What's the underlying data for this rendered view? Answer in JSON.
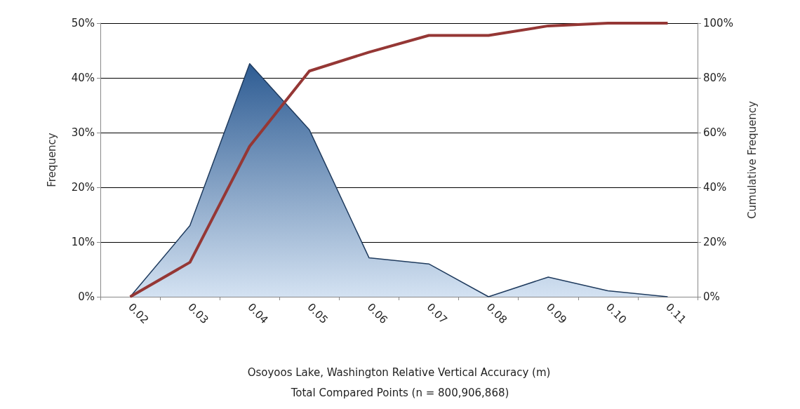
{
  "chart_data": {
    "type": "area",
    "xlabel": "Osoyoos Lake, Washington Relative Vertical Accuracy (m)",
    "ylabel": "Frequency",
    "y2label": "Cumulative Frequency",
    "annotations": [
      "Total Compared Points (n = 800,906,868)"
    ],
    "categories": [
      "0.02",
      "0.03",
      "0.04",
      "0.05",
      "0.06",
      "0.07",
      "0.08",
      "0.09",
      "0.10",
      "0.11"
    ],
    "series": [
      {
        "color": "#2e5c93",
        "values": [
          0,
          13,
          42.6,
          30.5,
          7.1,
          6,
          0,
          3.6,
          1.1,
          0
        ]
      },
      {
        "type": "line",
        "axis": "y2",
        "color": "#953735",
        "values": [
          0,
          12.6,
          55,
          82.5,
          89.4,
          95.5,
          95.5,
          99,
          100,
          100
        ]
      }
    ],
    "ylim": [
      0,
      50
    ],
    "yticks": [
      {
        "value": 0,
        "label": "0%"
      },
      {
        "value": 10,
        "label": "10%"
      },
      {
        "value": 20,
        "label": "20%"
      },
      {
        "value": 30,
        "label": "30%"
      },
      {
        "value": 40,
        "label": "40%"
      },
      {
        "value": 50,
        "label": "50%"
      }
    ],
    "y2lim": [
      0,
      100
    ],
    "y2ticks": [
      {
        "value": 0,
        "label": "0%"
      },
      {
        "value": 20,
        "label": "20%"
      },
      {
        "value": 40,
        "label": "40%"
      },
      {
        "value": 60,
        "label": "60%"
      },
      {
        "value": 80,
        "label": "80%"
      },
      {
        "value": 100,
        "label": "100%"
      }
    ],
    "grid": "y",
    "marker": "none",
    "line_style": "solid"
  }
}
